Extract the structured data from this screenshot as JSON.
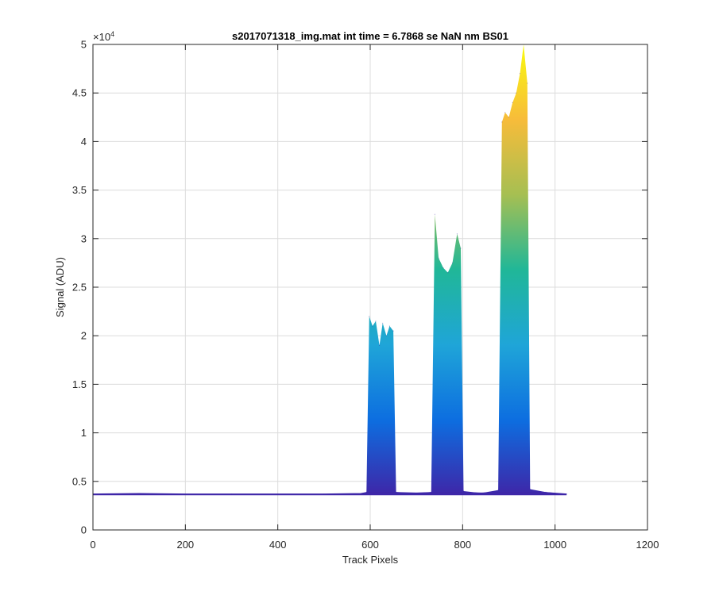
{
  "chart_data": {
    "type": "area",
    "title": "s2017071318_img.mat int time = 6.7868 se  NaN nm BS01",
    "xlabel": "Track Pixels",
    "ylabel": "Signal (ADU)",
    "xlim": [
      0,
      1200
    ],
    "ylim": [
      0,
      50000
    ],
    "xticks": [
      0,
      200,
      400,
      600,
      800,
      1000,
      1200
    ],
    "xtick_labels": [
      "0",
      "200",
      "400",
      "600",
      "800",
      "1000",
      "1200"
    ],
    "yticks": [
      0,
      5000,
      10000,
      15000,
      20000,
      25000,
      30000,
      35000,
      40000,
      45000,
      50000
    ],
    "ytick_labels": [
      "0",
      "0.5",
      "1",
      "1.5",
      "2",
      "2.5",
      "3",
      "3.5",
      "4",
      "4.5",
      "5"
    ],
    "y_exponent_label": "×10",
    "y_exponent_power": "4",
    "grid": true,
    "baseline": 3700,
    "x": [
      0,
      100,
      200,
      300,
      400,
      500,
      580,
      592,
      598,
      605,
      612,
      620,
      627,
      635,
      642,
      650,
      656,
      700,
      732,
      740,
      748,
      758,
      768,
      778,
      788,
      796,
      802,
      840,
      877,
      885,
      892,
      900,
      908,
      916,
      924,
      932,
      940,
      946,
      980,
      1025
    ],
    "values": [
      3700,
      3750,
      3700,
      3700,
      3700,
      3700,
      3750,
      3900,
      22000,
      21000,
      21500,
      19000,
      21300,
      20000,
      21000,
      20500,
      3900,
      3800,
      3900,
      32500,
      28000,
      27000,
      26500,
      27500,
      30500,
      29000,
      4000,
      3800,
      4100,
      42000,
      43000,
      42500,
      44000,
      45000,
      47000,
      50000,
      46000,
      4200,
      3900,
      3700
    ],
    "colormap": [
      "#3e26a8",
      "#0d6ee0",
      "#1fa5d8",
      "#20b798",
      "#a6bf52",
      "#f7bc3a",
      "#f9fb0e"
    ]
  }
}
